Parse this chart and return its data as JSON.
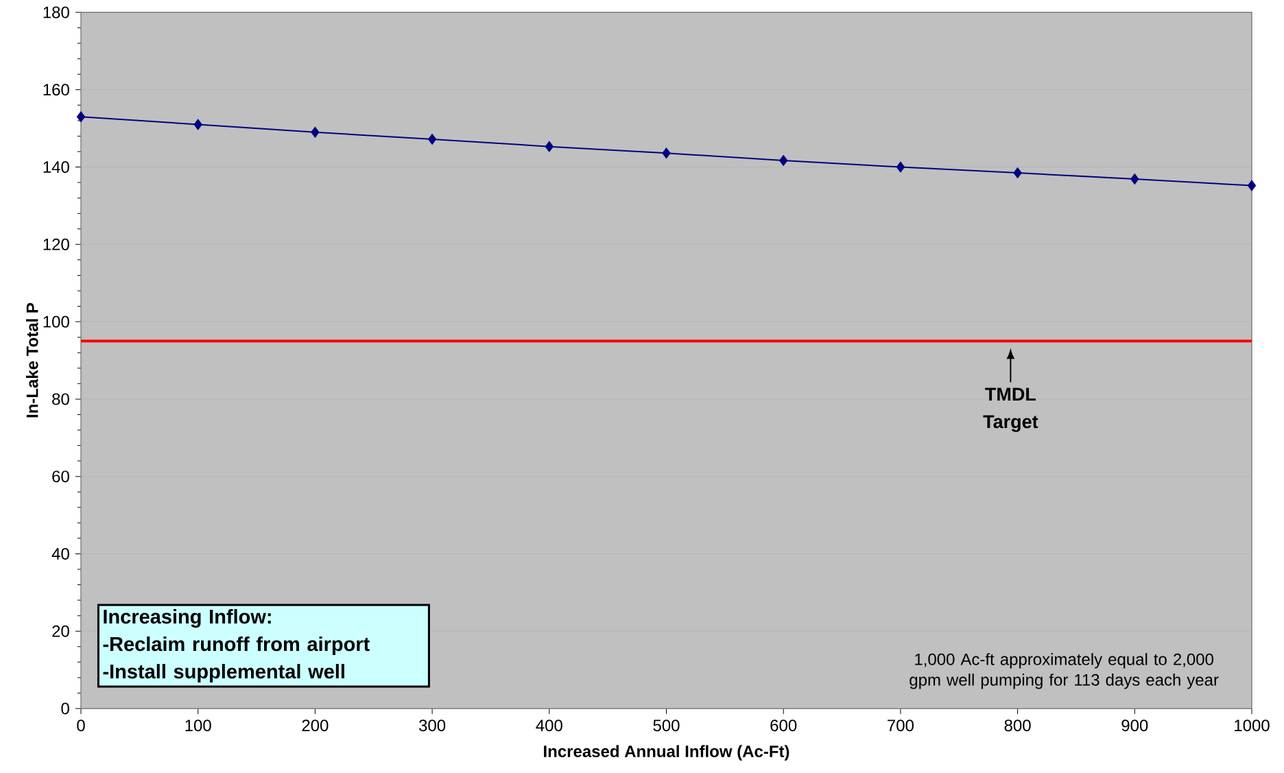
{
  "chart_data": {
    "type": "line",
    "xlabel": "Increased Annual Inflow (Ac-Ft)",
    "ylabel": "In-Lake Total P",
    "x": [
      0,
      100,
      200,
      300,
      400,
      500,
      600,
      700,
      800,
      900,
      1000
    ],
    "series": [
      {
        "color": "#000080",
        "values": [
          153,
          151,
          149,
          147.2,
          145.3,
          143.6,
          141.7,
          140,
          138.5,
          136.9,
          135.2
        ]
      }
    ],
    "marker": "diamond",
    "grid": "y",
    "xlim": [
      0,
      1000
    ],
    "xticks": [
      0,
      100,
      200,
      300,
      400,
      500,
      600,
      700,
      800,
      900,
      1000
    ],
    "ylim": [
      0,
      180
    ],
    "yticks": [
      0,
      20,
      40,
      60,
      80,
      100,
      120,
      140,
      160,
      180
    ],
    "ref_lines": [
      {
        "axis": "y",
        "value": 95,
        "label": "TMDL Target",
        "color": "#ff0000"
      }
    ],
    "annotations": [
      "Increasing Inflow:",
      "-Reclaim runoff from airport",
      "-Install supplemental well",
      "1,000 Ac-ft approximately equal to 2,000 gpm well pumping for 113 days each year"
    ]
  }
}
